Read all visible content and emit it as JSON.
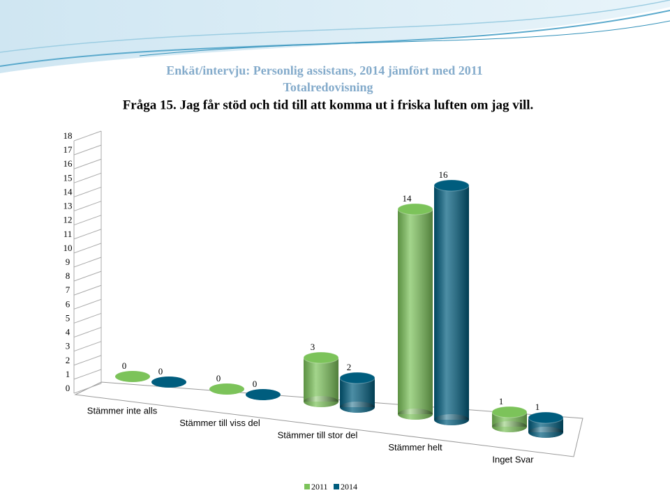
{
  "chart_data": {
    "type": "bar3d",
    "title": "Enkät/intervju: Personlig assistans, 2014 jämfört med 2011",
    "subtitle": "Totalredovisning",
    "question": "Fråga 15. Jag får stöd och tid till att komma ut i friska luften om jag vill.",
    "categories": [
      "Stämmer inte alls",
      "Stämmer till viss del",
      "Stämmer till stor del",
      "Stämmer helt",
      "Inget Svar"
    ],
    "series": [
      {
        "name": "2011",
        "color": "#7cc35a",
        "values": [
          0,
          0,
          3,
          14,
          1
        ]
      },
      {
        "name": "2014",
        "color": "#005d7e",
        "values": [
          0,
          0,
          2,
          16,
          1
        ]
      }
    ],
    "ylim": [
      0,
      18
    ],
    "yticks": [
      0,
      1,
      2,
      3,
      4,
      5,
      6,
      7,
      8,
      9,
      10,
      11,
      12,
      13,
      14,
      15,
      16,
      17,
      18
    ],
    "legend": "bottom"
  }
}
